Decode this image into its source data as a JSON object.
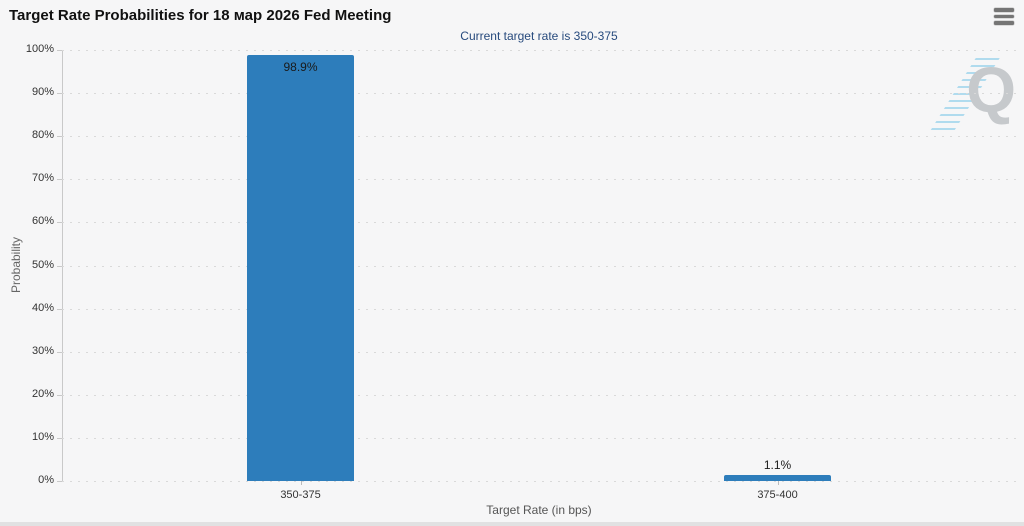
{
  "header": {
    "title": "Target Rate Probabilities for 18 мар 2026 Fed Meeting",
    "menu_icon": "hamburger-menu-icon"
  },
  "chart_data": {
    "type": "bar",
    "title": "Target Rate Probabilities for 18 мар 2026 Fed Meeting",
    "subtitle": "Current target rate is 350-375",
    "categories": [
      "350-375",
      "375-400"
    ],
    "values": [
      98.9,
      1.1
    ],
    "value_labels": [
      "98.9%",
      "1.1%"
    ],
    "xlabel": "Target Rate (in bps)",
    "ylabel": "Probability",
    "ylim": [
      0,
      100
    ],
    "ytick_step": 10,
    "ytick_labels": [
      "0%",
      "10%",
      "20%",
      "30%",
      "40%",
      "50%",
      "60%",
      "70%",
      "80%",
      "90%",
      "100%"
    ],
    "grid": "dotted-horizontal",
    "legend": "none",
    "bar_color": "#2d7dbb"
  },
  "watermark": {
    "letter": "Q"
  },
  "colors": {
    "background": "#f6f6f7",
    "bar": "#2d7dbb",
    "subtitle_text": "#274a7d",
    "gridline": "#d9d9d9",
    "axis_text": "#333333"
  }
}
